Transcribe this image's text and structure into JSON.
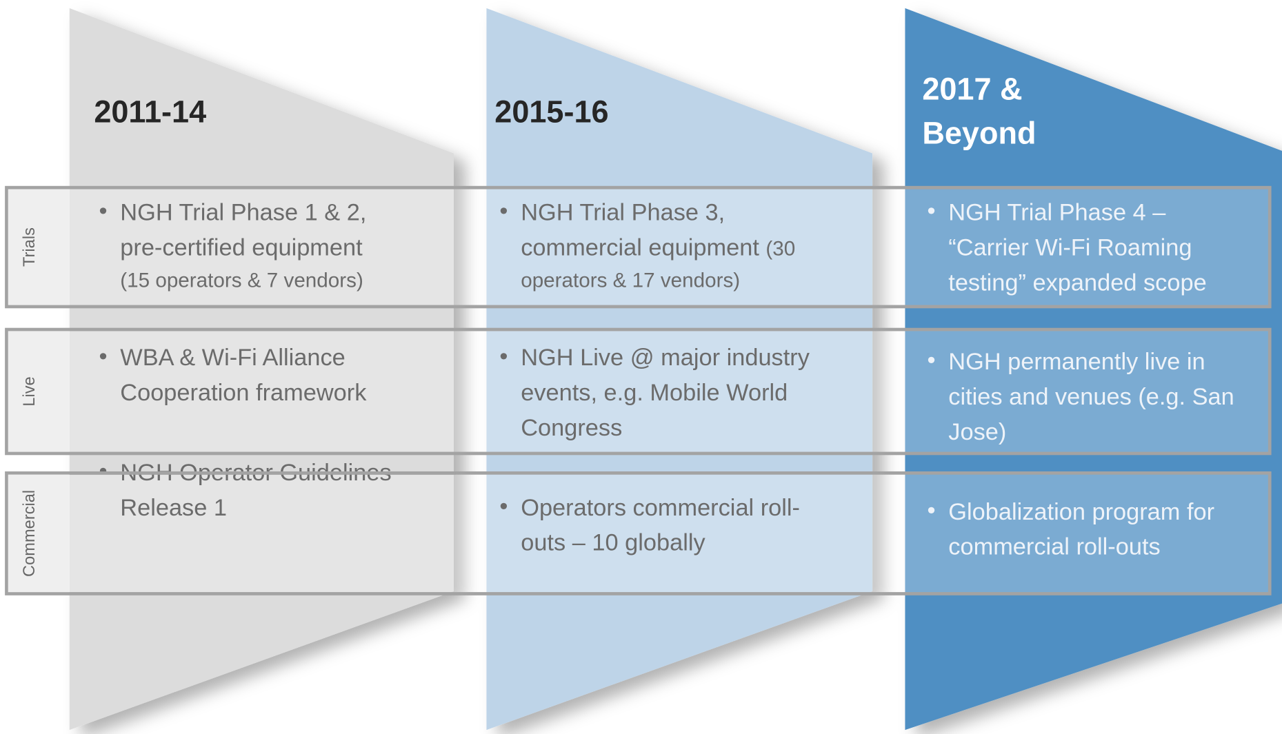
{
  "columns": [
    {
      "title": [
        "2011-14"
      ],
      "cells": [
        {
          "lines": [
            "NGH Trial Phase 1 & 2,",
            "pre-certified equipment"
          ],
          "detail": [
            "(15 operators & 7 vendors)"
          ]
        },
        {
          "lines": [
            "WBA & Wi-Fi Alliance",
            "Cooperation  framework"
          ]
        },
        {
          "lines": [
            "NGH Operator Guidelines",
            "Release 1"
          ]
        }
      ]
    },
    {
      "title": [
        "2015-16"
      ],
      "cells": [
        {
          "lines": [
            "NGH Trial Phase 3,",
            "commercial equipment"
          ],
          "detail": [
            "(30",
            "operators & 17 vendors)"
          ],
          "detail_inline": true
        },
        {
          "lines": [
            "NGH Live @ major industry",
            "events, e.g. Mobile World",
            "Congress"
          ]
        },
        {
          "lines": [
            "Operators commercial roll-",
            "outs – 10 globally"
          ]
        }
      ]
    },
    {
      "title": [
        "2017 &",
        "Beyond"
      ],
      "cells": [
        {
          "lines": [
            "NGH Trial Phase 4 –",
            "“Carrier Wi-Fi Roaming",
            "testing” expanded scope"
          ]
        },
        {
          "lines": [
            "NGH permanently live in",
            "cities and venues (e.g. San",
            "Jose)"
          ]
        },
        {
          "lines": [
            "Globalization program for",
            "commercial roll-outs"
          ]
        }
      ]
    }
  ],
  "rows": [
    "Trials",
    "Live",
    "Commercial"
  ]
}
